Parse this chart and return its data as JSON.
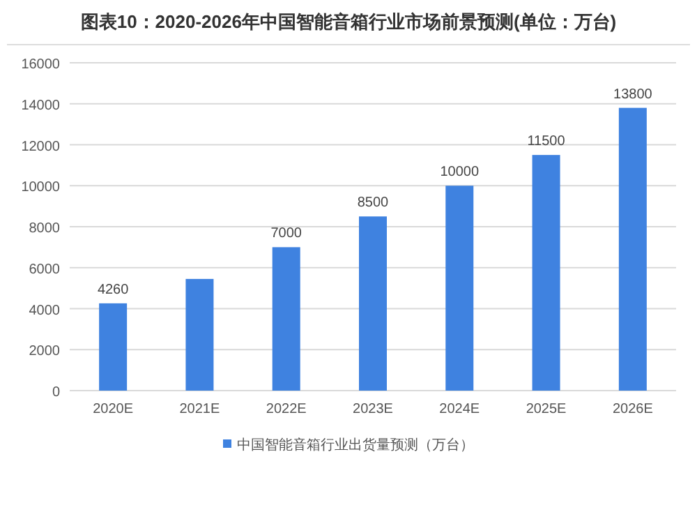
{
  "chart_data": {
    "type": "bar",
    "title": "图表10：2020-2026年中国智能音箱行业市场前景预测(单位：万台)",
    "categories": [
      "2020E",
      "2021E",
      "2022E",
      "2023E",
      "2024E",
      "2025E",
      "2026E"
    ],
    "series": [
      {
        "name": "中国智能音箱行业出货量预测（万台）",
        "color": "#3f82e0",
        "values": [
          4260,
          5450,
          7000,
          8500,
          10000,
          11500,
          13800
        ],
        "value_labels": [
          "4260",
          null,
          "7000",
          "8500",
          "10000",
          "11500",
          "13800"
        ]
      }
    ],
    "ylim": [
      0,
      16000
    ],
    "yticks": [
      0,
      2000,
      4000,
      6000,
      8000,
      10000,
      12000,
      14000,
      16000
    ],
    "grid": "y",
    "legend": "bottom"
  }
}
